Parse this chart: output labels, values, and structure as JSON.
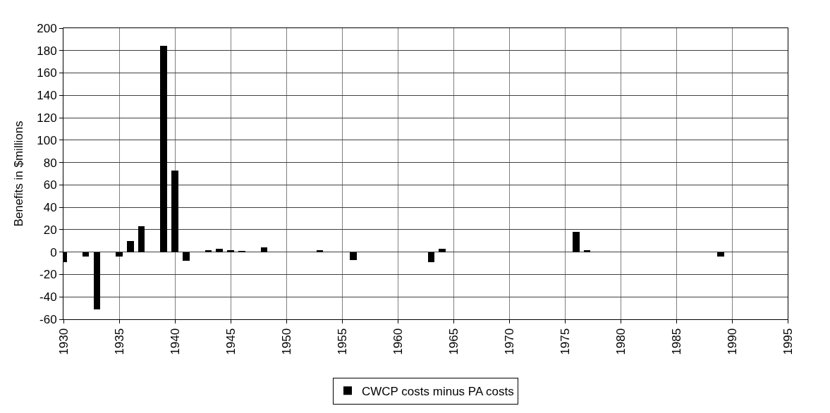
{
  "chart_data": {
    "type": "bar",
    "ylabel": "Benefits in $millions",
    "x": [
      1930,
      1932,
      1933,
      1935,
      1936,
      1937,
      1939,
      1940,
      1941,
      1943,
      1944,
      1945,
      1946,
      1948,
      1953,
      1956,
      1963,
      1964,
      1976,
      1977,
      1989
    ],
    "series": [
      {
        "name": "CWCP costs minus PA costs",
        "color": "#000000",
        "values": [
          -9,
          -4,
          -51,
          -4,
          10,
          23,
          184,
          73,
          -8,
          1.5,
          3,
          1.5,
          1,
          4,
          1.5,
          -7,
          -9,
          3,
          18,
          1.5,
          -4
        ]
      }
    ],
    "xlim": [
      1930,
      1995
    ],
    "xticks": [
      1930,
      1935,
      1940,
      1945,
      1950,
      1955,
      1960,
      1965,
      1970,
      1975,
      1980,
      1985,
      1990,
      1995
    ],
    "ylim": [
      -60,
      200
    ],
    "yticks": [
      -60,
      -40,
      -20,
      0,
      20,
      40,
      60,
      80,
      100,
      120,
      140,
      160,
      180,
      200
    ],
    "grid": true,
    "legend": "bottom"
  }
}
